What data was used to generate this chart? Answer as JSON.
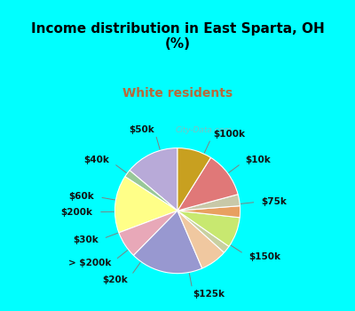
{
  "title": "Income distribution in East Sparta, OH\n(%)",
  "subtitle": "White residents",
  "title_color": "#000000",
  "subtitle_color": "#b8693a",
  "bg_cyan": "#00ffff",
  "bg_chart": "#d8ede4",
  "watermark": "City-Data.com",
  "labels": [
    "$100k",
    "$10k",
    "$75k",
    "$150k",
    "$125k",
    "$20k",
    "> $200k",
    "$30k",
    "$200k",
    "$60k",
    "$40k",
    "$50k"
  ],
  "values": [
    14,
    2,
    15,
    7,
    19,
    7,
    2,
    8,
    3,
    3,
    12,
    9
  ],
  "colors": [
    "#b8aad8",
    "#98c898",
    "#ffff88",
    "#e8a8b8",
    "#9898d0",
    "#f0c8a0",
    "#c8d0a0",
    "#c8e870",
    "#e8a060",
    "#c8c8a8",
    "#e07878",
    "#c8a020"
  ],
  "label_fontsize": 7.5,
  "startangle": 90,
  "title_fontsize": 11,
  "subtitle_fontsize": 10
}
